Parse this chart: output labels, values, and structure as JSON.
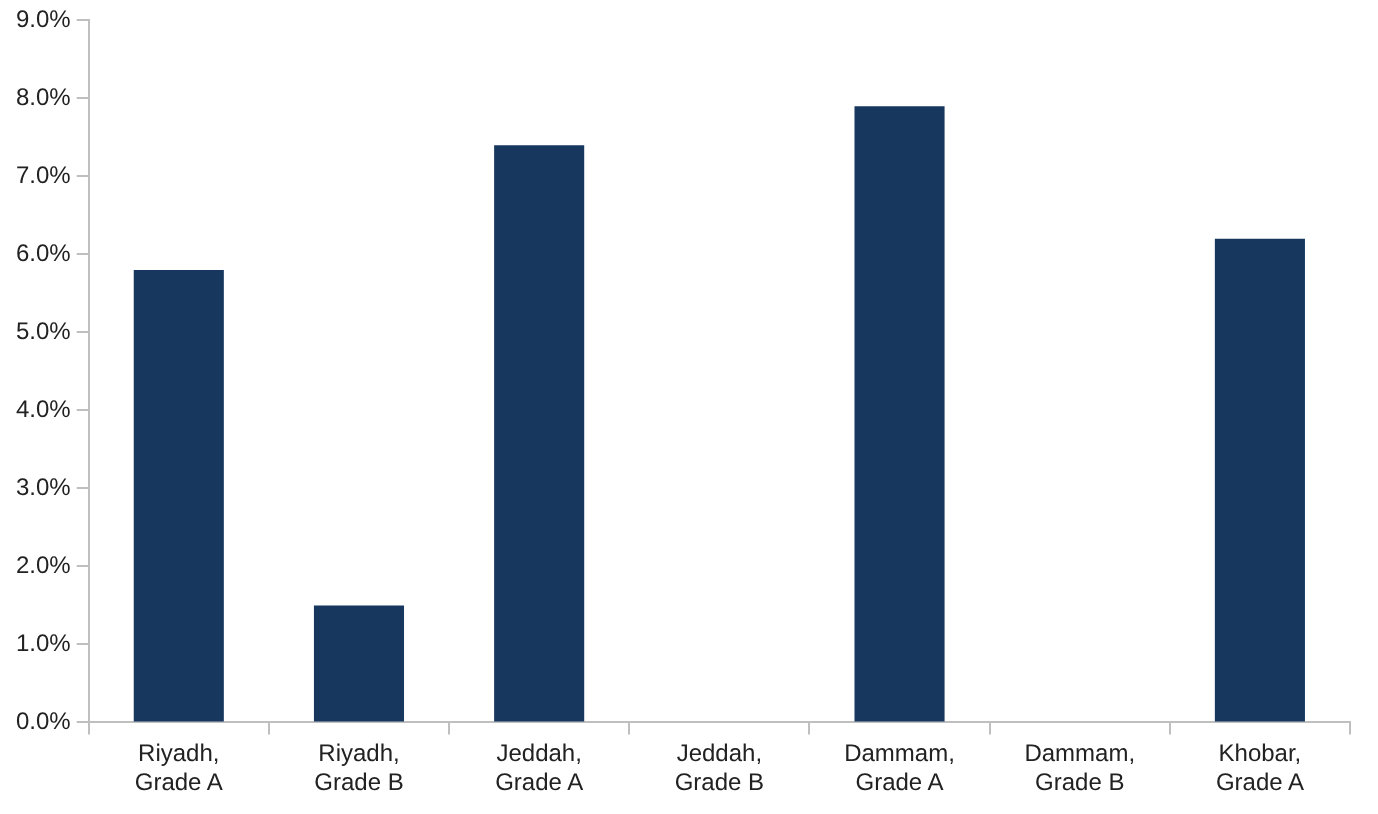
{
  "chart_data": {
    "type": "bar",
    "categories": [
      "Riyadh, Grade A",
      "Riyadh, Grade B",
      "Jeddah, Grade A",
      "Jeddah, Grade B",
      "Dammam, Grade A",
      "Dammam, Grade B",
      "Khobar, Grade A"
    ],
    "values": [
      5.8,
      1.5,
      7.4,
      0,
      7.9,
      0,
      6.2
    ],
    "color": "#17375e",
    "ylim": [
      0,
      9
    ],
    "yticks": [
      {
        "value": 0,
        "label": "0.0%"
      },
      {
        "value": 1,
        "label": "1.0%"
      },
      {
        "value": 2,
        "label": "2.0%"
      },
      {
        "value": 3,
        "label": "3.0%"
      },
      {
        "value": 4,
        "label": "4.0%"
      },
      {
        "value": 5,
        "label": "5.0%"
      },
      {
        "value": 6,
        "label": "6.0%"
      },
      {
        "value": 7,
        "label": "7.0%"
      },
      {
        "value": 8,
        "label": "8.0%"
      },
      {
        "value": 9,
        "label": "9.0%"
      }
    ],
    "grid": false,
    "legend": false
  }
}
